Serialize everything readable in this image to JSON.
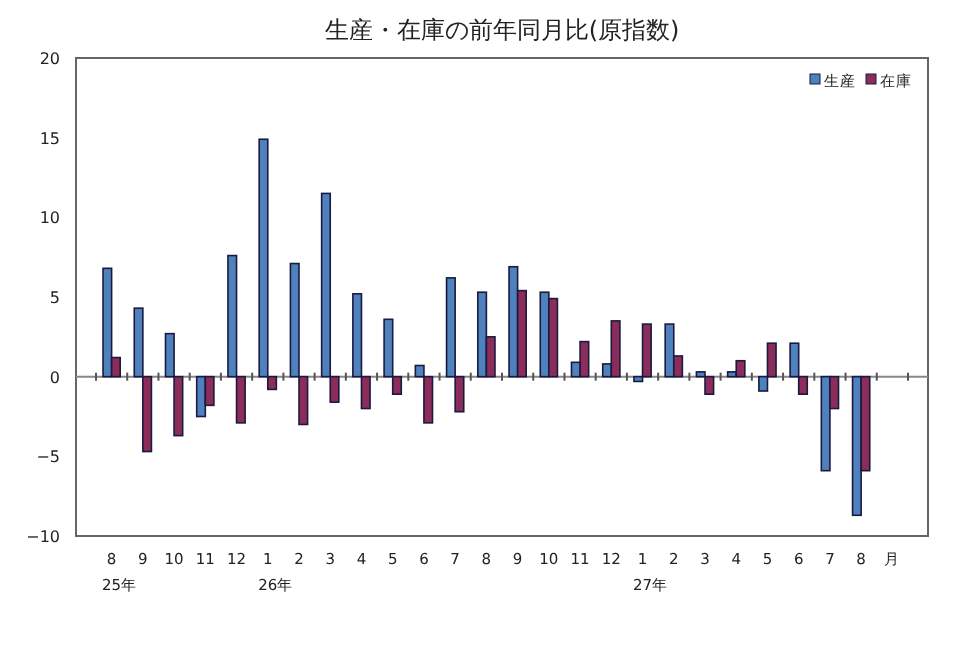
{
  "chart_data": {
    "type": "bar",
    "title": "生産・在庫の前年同月比(原指数)",
    "categories": [
      "8\n25年",
      "9",
      "10",
      "11",
      "12",
      "1\n26年",
      "2",
      "3",
      "4",
      "5",
      "6",
      "7",
      "8",
      "9",
      "10",
      "11",
      "12",
      "1\n27年",
      "2",
      "3",
      "4",
      "5",
      "6",
      "7",
      "8",
      "月"
    ],
    "series": [
      {
        "name": "生産",
        "color": "#4f81bd",
        "values": [
          6.8,
          4.3,
          2.7,
          -2.5,
          7.6,
          14.9,
          7.1,
          11.5,
          5.2,
          3.6,
          0.7,
          6.2,
          5.3,
          6.9,
          5.3,
          0.9,
          0.8,
          -0.3,
          3.3,
          0.3,
          0.3,
          -0.9,
          2.1,
          -5.9,
          -8.7,
          null
        ]
      },
      {
        "name": "在庫",
        "color": "#8b2c5a",
        "values": [
          1.2,
          -4.7,
          -3.7,
          -1.8,
          -2.9,
          -0.8,
          -3.0,
          -1.6,
          -2.0,
          -1.1,
          -2.9,
          -2.2,
          2.5,
          5.4,
          4.9,
          2.2,
          3.5,
          3.3,
          1.3,
          -1.1,
          1.0,
          2.1,
          -1.1,
          -2.0,
          -5.9,
          null
        ]
      }
    ],
    "ylim": [
      -10,
      20
    ],
    "yticks": [
      -10,
      -5,
      0,
      5,
      10,
      15,
      20
    ],
    "legend": "top right"
  }
}
